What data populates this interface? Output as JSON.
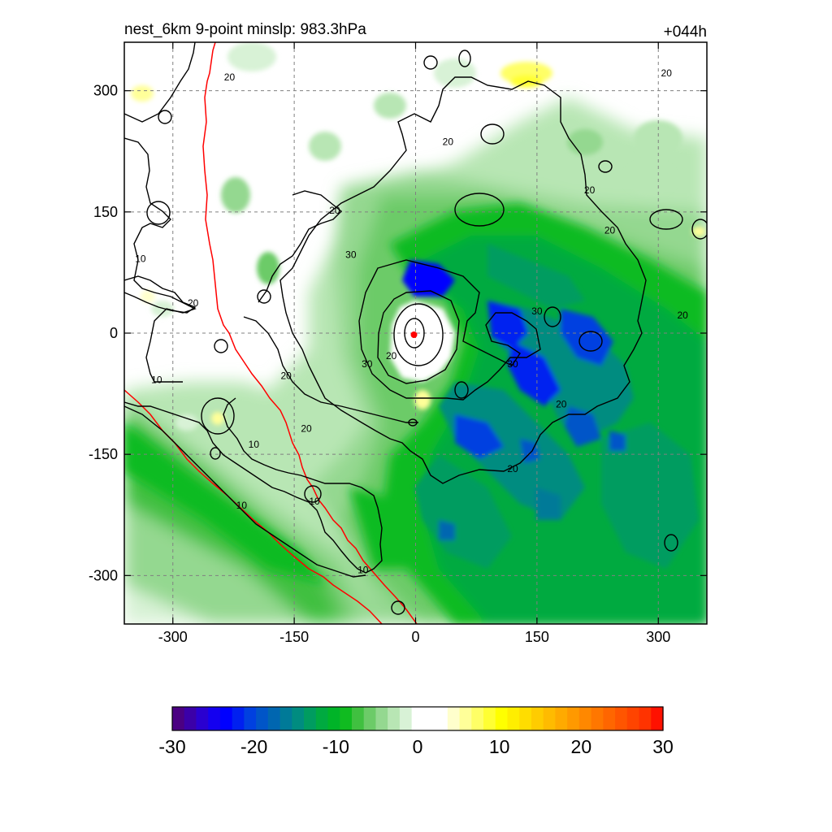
{
  "chart_data": {
    "type": "heatmap",
    "title_left": "nest_6km  9-point minslp: 983.3hPa",
    "title_right": "+044h",
    "x_ticks": [
      -300,
      -150,
      0,
      150,
      300
    ],
    "y_ticks": [
      300,
      150,
      0,
      -150,
      -300
    ],
    "xlim": [
      -360,
      360
    ],
    "ylim": [
      -360,
      360
    ],
    "grid": true,
    "colorbar": {
      "min": -30,
      "max": 30,
      "ticks": [
        -30,
        -20,
        -10,
        0,
        10,
        20,
        30
      ],
      "colors": [
        "#4B0082",
        "#3B00A8",
        "#2A00D0",
        "#1400F0",
        "#0000FF",
        "#0020F0",
        "#0040E0",
        "#0055C8",
        "#0066B0",
        "#007A98",
        "#008C80",
        "#009C60",
        "#00AA40",
        "#00B428",
        "#10BB20",
        "#40C040",
        "#6CCB68",
        "#94D890",
        "#B8E6B4",
        "#D8F2D6",
        "#FFFFFF",
        "#FFFFFF",
        "#FFFFFF",
        "#FFFFCC",
        "#FFFF99",
        "#FFFF66",
        "#FFFF33",
        "#FFFF00",
        "#FFEE00",
        "#FFDD00",
        "#FFCC00",
        "#FFBB00",
        "#FFAA00",
        "#FF9900",
        "#FF8800",
        "#FF7700",
        "#FF6600",
        "#FF5500",
        "#FF4400",
        "#FF3300",
        "#FF1100"
      ]
    },
    "contours": {
      "levels": [
        10,
        20,
        30
      ],
      "color": "#000000",
      "labels": [
        {
          "text": "20",
          "x": 310,
          "y": 320
        },
        {
          "text": "20",
          "x": 215,
          "y": 175
        },
        {
          "text": "20",
          "x": 40,
          "y": 235
        },
        {
          "text": "20",
          "x": -230,
          "y": 315
        },
        {
          "text": "20",
          "x": -100,
          "y": 150
        },
        {
          "text": "30",
          "x": -80,
          "y": 95
        },
        {
          "text": "30",
          "x": 150,
          "y": 25
        },
        {
          "text": "20",
          "x": 240,
          "y": 125
        },
        {
          "text": "20",
          "x": 330,
          "y": 20
        },
        {
          "text": "20",
          "x": -275,
          "y": 35
        },
        {
          "text": "20",
          "x": -160,
          "y": -55
        },
        {
          "text": "20",
          "x": -30,
          "y": -30
        },
        {
          "text": "30",
          "x": -60,
          "y": -40
        },
        {
          "text": "30",
          "x": 120,
          "y": -40
        },
        {
          "text": "20",
          "x": 180,
          "y": -90
        },
        {
          "text": "20",
          "x": 120,
          "y": -170
        },
        {
          "text": "20",
          "x": -135,
          "y": -120
        },
        {
          "text": "10",
          "x": -340,
          "y": 90
        },
        {
          "text": "10",
          "x": -320,
          "y": -60
        },
        {
          "text": "10",
          "x": -200,
          "y": -140
        },
        {
          "text": "10",
          "x": -215,
          "y": -215
        },
        {
          "text": "10",
          "x": -125,
          "y": -210
        },
        {
          "text": "10",
          "x": -65,
          "y": -295
        }
      ]
    },
    "red_lines": {
      "color": "#FF0000"
    },
    "storm_center": {
      "x": -2,
      "y": -2,
      "color": "#FF0000"
    }
  }
}
